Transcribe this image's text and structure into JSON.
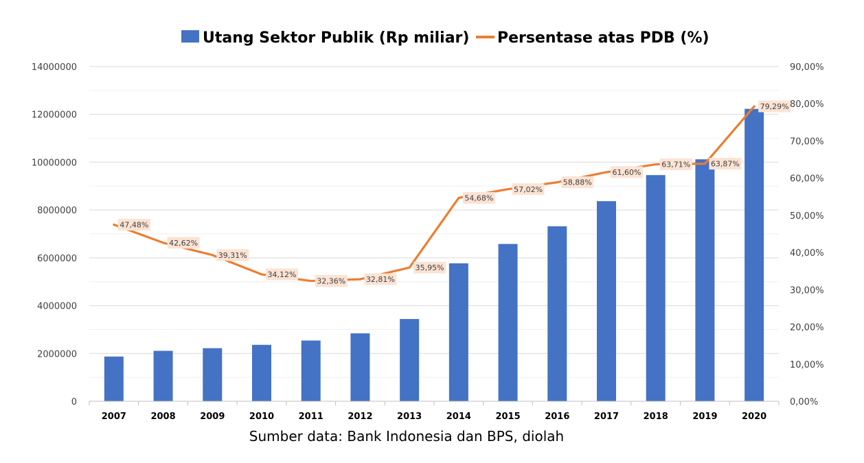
{
  "chart_data": {
    "type": "bar+line",
    "categories": [
      "2007",
      "2008",
      "2009",
      "2010",
      "2011",
      "2012",
      "2013",
      "2014",
      "2015",
      "2016",
      "2017",
      "2018",
      "2019",
      "2020"
    ],
    "series": [
      {
        "name": "Utang Sektor Publik (Rp miliar)",
        "type": "bar",
        "axis": "left",
        "color": "#4472C4",
        "values": [
          1870000,
          2110000,
          2220000,
          2360000,
          2540000,
          2840000,
          3440000,
          5770000,
          6580000,
          7320000,
          8370000,
          9460000,
          10120000,
          12230000
        ]
      },
      {
        "name": "Persentase atas PDB (%)",
        "type": "line",
        "axis": "right",
        "color": "#ED7D31",
        "values": [
          47.48,
          42.62,
          39.31,
          34.12,
          32.36,
          32.81,
          35.95,
          54.68,
          57.02,
          58.88,
          61.6,
          63.71,
          63.87,
          79.29
        ],
        "labels": [
          "47,48%",
          "42,62%",
          "39,31%",
          "34,12%",
          "32,36%",
          "32,81%",
          "35,95%",
          "54,68%",
          "57,02%",
          "58,88%",
          "61,60%",
          "63,71%",
          "63,87%",
          "79,29%"
        ]
      }
    ],
    "y_left": {
      "ylim": [
        0,
        14000000
      ],
      "ticks": [
        0,
        2000000,
        4000000,
        6000000,
        8000000,
        10000000,
        12000000,
        14000000
      ],
      "tick_labels": [
        "0",
        "2000000",
        "4000000",
        "6000000",
        "8000000",
        "10000000",
        "12000000",
        "14000000"
      ]
    },
    "y_right": {
      "ylim": [
        0,
        90
      ],
      "ticks": [
        0,
        10,
        20,
        30,
        40,
        50,
        60,
        70,
        80,
        90
      ],
      "tick_labels": [
        "0,00%",
        "10,00%",
        "20,00%",
        "30,00%",
        "40,00%",
        "50,00%",
        "60,00%",
        "70,00%",
        "80,00%",
        "90,00%"
      ]
    },
    "grid": true,
    "legend": "top-center",
    "source_note": "Sumber data: Bank Indonesia dan BPS, diolah"
  }
}
